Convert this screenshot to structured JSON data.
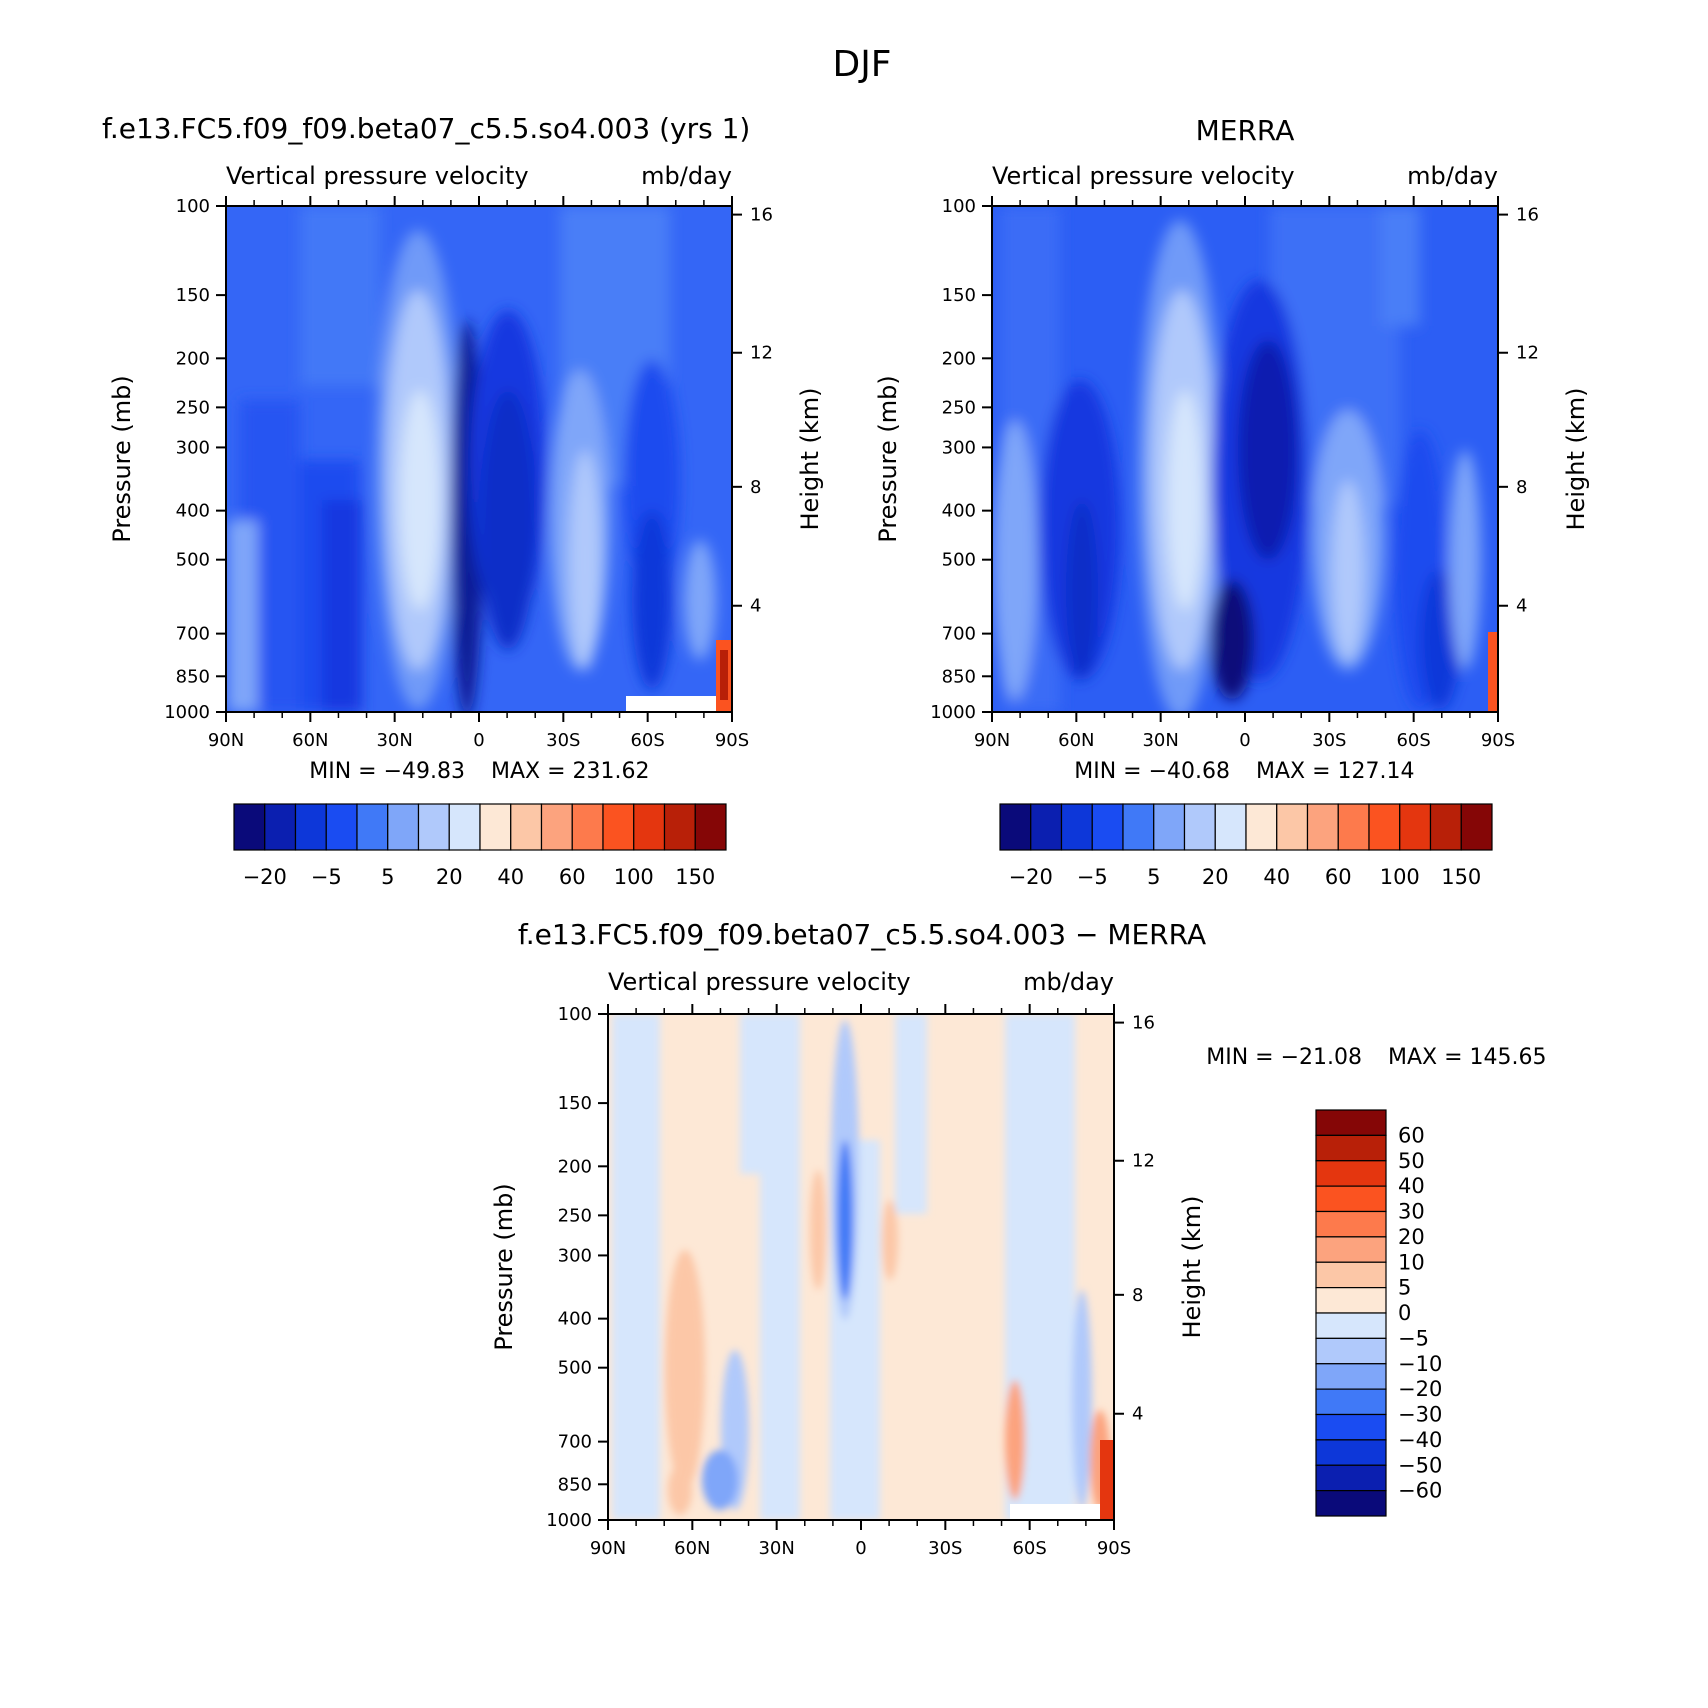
{
  "figure_title": "DJF",
  "chart_data": [
    {
      "type": "heatmap",
      "panel": "model",
      "title": "f.e13.FC5.f09_f09.beta07_c5.5.so4.003 (yrs 1)",
      "subtitle_left": "Vertical pressure velocity",
      "subtitle_right": "mb/day",
      "ylabel": "Pressure (mb)",
      "ylabel_right": "Height (km)",
      "x_ticks": [
        "90N",
        "60N",
        "30N",
        "0",
        "30S",
        "60S",
        "90S"
      ],
      "y_ticks": [
        "100",
        "150",
        "200",
        "250",
        "300",
        "400",
        "500",
        "700",
        "850",
        "1000"
      ],
      "y_ticks_right": [
        "16",
        "12",
        "8",
        "4"
      ],
      "xlim": [
        90,
        -90
      ],
      "ylim": [
        1000,
        100
      ],
      "min_label": "MIN = −49.83",
      "max_label": "MAX = 231.62",
      "min": -49.83,
      "max": 231.62,
      "colorbar_labels": [
        "−20",
        "−5",
        "5",
        "20",
        "40",
        "60",
        "100",
        "150"
      ],
      "colorbar_levels": 16
    },
    {
      "type": "heatmap",
      "panel": "obs",
      "title": "MERRA",
      "subtitle_left": "Vertical pressure velocity",
      "subtitle_right": "mb/day",
      "ylabel": "Pressure (mb)",
      "ylabel_right": "Height (km)",
      "x_ticks": [
        "90N",
        "60N",
        "30N",
        "0",
        "30S",
        "60S",
        "90S"
      ],
      "y_ticks": [
        "100",
        "150",
        "200",
        "250",
        "300",
        "400",
        "500",
        "700",
        "850",
        "1000"
      ],
      "y_ticks_right": [
        "16",
        "12",
        "8",
        "4"
      ],
      "xlim": [
        90,
        -90
      ],
      "ylim": [
        1000,
        100
      ],
      "min_label": "MIN = −40.68",
      "max_label": "MAX = 127.14",
      "min": -40.68,
      "max": 127.14,
      "colorbar_labels": [
        "−20",
        "−5",
        "5",
        "20",
        "40",
        "60",
        "100",
        "150"
      ],
      "colorbar_levels": 16
    },
    {
      "type": "heatmap",
      "panel": "diff",
      "title": "f.e13.FC5.f09_f09.beta07_c5.5.so4.003 − MERRA",
      "subtitle_left": "Vertical pressure velocity",
      "subtitle_right": "mb/day",
      "ylabel": "Pressure (mb)",
      "ylabel_right": "Height (km)",
      "x_ticks": [
        "90N",
        "60N",
        "30N",
        "0",
        "30S",
        "60S",
        "90S"
      ],
      "y_ticks": [
        "100",
        "150",
        "200",
        "250",
        "300",
        "400",
        "500",
        "700",
        "850",
        "1000"
      ],
      "y_ticks_right": [
        "16",
        "12",
        "8",
        "4"
      ],
      "xlim": [
        90,
        -90
      ],
      "ylim": [
        1000,
        100
      ],
      "min_label": "MIN = −21.08",
      "max_label": "MAX = 145.65",
      "min": -21.08,
      "max": 145.65,
      "colorbar_labels": [
        "60",
        "50",
        "40",
        "30",
        "20",
        "10",
        "5",
        "0",
        "−5",
        "−10",
        "−20",
        "−30",
        "−40",
        "−50",
        "−60"
      ],
      "colorbar_levels": 16
    }
  ],
  "colors": {
    "blue_scale": [
      "#0a0a7a",
      "#0b1fb0",
      "#0d37d9",
      "#1a4cf2",
      "#4079f7",
      "#7fa6f9",
      "#b0c9fb",
      "#d6e6fc"
    ],
    "red_scale": [
      "#fde8d6",
      "#fcc7a7",
      "#fca37e",
      "#fd7a4c",
      "#fb5320",
      "#e4360f",
      "#b82008",
      "#850606"
    ]
  }
}
